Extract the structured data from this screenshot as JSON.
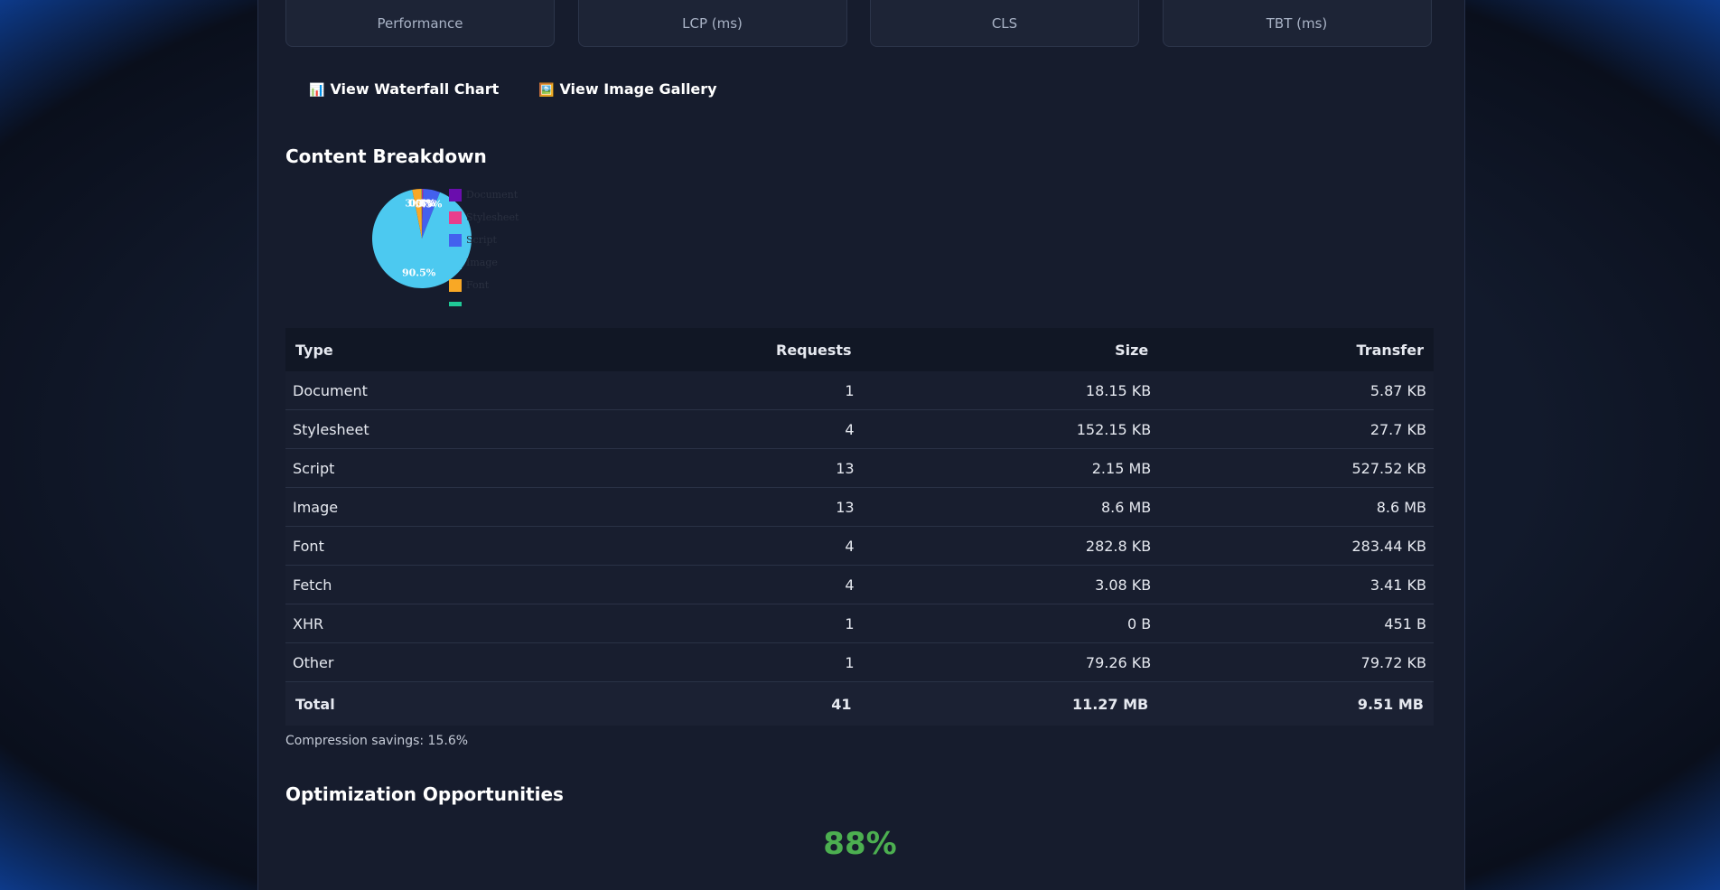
{
  "metric_cards": [
    "Performance",
    "LCP (ms)",
    "CLS",
    "TBT (ms)"
  ],
  "buttons": [
    {
      "icon": "📊",
      "label": "View Waterfall Chart"
    },
    {
      "icon": "🖼️",
      "label": "View Image Gallery"
    }
  ],
  "content_breakdown": {
    "title": "Content Breakdown"
  },
  "chart_data": {
    "type": "pie",
    "categories": [
      "Document",
      "Stylesheet",
      "Script",
      "Image",
      "Font",
      null
    ],
    "values": [
      0.1,
      0.3,
      5.5,
      90.5,
      3.0,
      0.1
    ],
    "value_labels": [
      "0.1%",
      "0.3%",
      "5.5%",
      "90.5%",
      "3.0%",
      "0.1%"
    ],
    "colors": [
      "#6a0dad",
      "#e83e8c",
      "#4361ee",
      "#4cc9f0",
      "#f9a825",
      "#20c997"
    ]
  },
  "table": {
    "headers": [
      "Type",
      "Requests",
      "Size",
      "Transfer"
    ],
    "rows": [
      [
        "Document",
        "1",
        "18.15 KB",
        "5.87 KB"
      ],
      [
        "Stylesheet",
        "4",
        "152.15 KB",
        "27.7 KB"
      ],
      [
        "Script",
        "13",
        "2.15 MB",
        "527.52 KB"
      ],
      [
        "Image",
        "13",
        "8.6 MB",
        "8.6 MB"
      ],
      [
        "Font",
        "4",
        "282.8 KB",
        "283.44 KB"
      ],
      [
        "Fetch",
        "4",
        "3.08 KB",
        "3.41 KB"
      ],
      [
        "XHR",
        "1",
        "0 B",
        "451 B"
      ],
      [
        "Other",
        "1",
        "79.26 KB",
        "79.72 KB"
      ]
    ],
    "total": [
      "Total",
      "41",
      "11.27 MB",
      "9.51 MB"
    ]
  },
  "compression": "Compression savings: 15.6%",
  "optimization": {
    "title": "Optimization Opportunities",
    "score": "88%"
  }
}
